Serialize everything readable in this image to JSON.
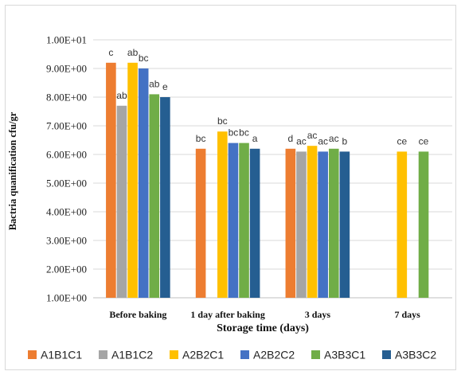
{
  "chart_data": {
    "type": "bar",
    "categories": [
      "Before baking",
      "1 day after baking",
      "3 days",
      "7 days"
    ],
    "xlabel": "Storage time (days)",
    "ylabel": "Bactria quanification    cfu/gr",
    "ylim": [
      1.0,
      10.0
    ],
    "y_ticks": [
      "1.00E+00",
      "2.00E+00",
      "3.00E+00",
      "4.00E+00",
      "5.00E+00",
      "6.00E+00",
      "7.00E+00",
      "8.00E+00",
      "9.00E+00",
      "1.00E+01"
    ],
    "grid": true,
    "legend_position": "bottom",
    "series": [
      {
        "name": "A1B1C1",
        "color": "#ed7d31",
        "values": [
          9.2,
          6.2,
          6.2,
          null
        ],
        "labels": [
          "c",
          "bc",
          "d",
          ""
        ]
      },
      {
        "name": "A1B1C2",
        "color": "#a5a5a5",
        "values": [
          7.7,
          null,
          6.1,
          null
        ],
        "labels": [
          "ab",
          "",
          "ac",
          ""
        ]
      },
      {
        "name": "A2B2C1",
        "color": "#ffc000",
        "values": [
          9.2,
          6.8,
          6.3,
          6.1
        ],
        "labels": [
          "ab",
          "bc",
          "ac",
          "ce"
        ]
      },
      {
        "name": "A2B2C2",
        "color": "#4472c4",
        "values": [
          9.0,
          6.4,
          6.1,
          null
        ],
        "labels": [
          "bc",
          "bc",
          "ac",
          ""
        ]
      },
      {
        "name": "A3B3C1",
        "color": "#70ad47",
        "values": [
          8.1,
          6.4,
          6.2,
          6.1
        ],
        "labels": [
          "ab",
          "bc",
          "ac",
          "ce"
        ]
      },
      {
        "name": "A3B3C2",
        "color": "#255e91",
        "values": [
          8.0,
          6.2,
          6.1,
          null
        ],
        "labels": [
          "e",
          "a",
          "b",
          ""
        ]
      }
    ]
  }
}
